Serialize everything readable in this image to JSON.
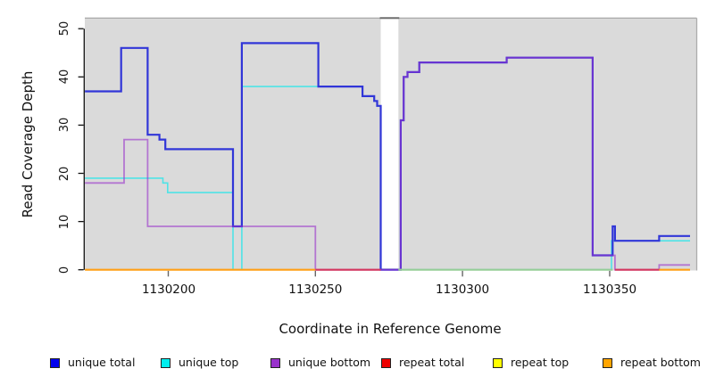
{
  "axes": {
    "x": {
      "label": "Coordinate in Reference Genome",
      "ticks": [
        "1130200",
        "1130250",
        "1130300",
        "1130350"
      ],
      "tick_values": [
        1130200,
        1130250,
        1130300,
        1130350
      ]
    },
    "y": {
      "label": "Read Coverage Depth",
      "ticks": [
        "0",
        "10",
        "20",
        "30",
        "40",
        "50"
      ],
      "tick_values": [
        0,
        10,
        20,
        30,
        40,
        50
      ]
    }
  },
  "legend": [
    {
      "label": "unique total",
      "color": "#0000EE"
    },
    {
      "label": "unique top",
      "color": "#00EEEE"
    },
    {
      "label": "unique bottom",
      "color": "#9932CC"
    },
    {
      "label": "repeat total",
      "color": "#EE0000"
    },
    {
      "label": "repeat top",
      "color": "#FFFF00"
    },
    {
      "label": "repeat bottom",
      "color": "#FFA500"
    }
  ],
  "chart_data": {
    "type": "line",
    "subtype": "step-coverage",
    "title": "",
    "xlabel": "Coordinate in Reference Genome",
    "ylabel": "Read Coverage Depth",
    "x_range": [
      1130171.7,
      1130379.6
    ],
    "y_range": [
      0,
      52
    ],
    "x_data_end": 1130377.3,
    "grid": false,
    "panel_background": "#DADADA",
    "legend_position": "bottom",
    "gap": {
      "x1": 1130272.2,
      "x2": 1130278.2,
      "fill": "#FFFFFF"
    },
    "series": [
      {
        "name": "unique top",
        "color": "#4FE3E6",
        "width": 1.6,
        "opacity": 1,
        "points": [
          [
            1130171.7,
            19
          ],
          [
            1130198.2,
            18
          ],
          [
            1130199.8,
            16
          ],
          [
            1130222,
            0
          ],
          [
            1130225,
            38
          ],
          [
            1130266,
            36
          ],
          [
            1130270,
            35
          ],
          [
            1130271,
            34
          ],
          [
            1130272.2,
            0
          ],
          [
            1130350.6,
            6
          ]
        ]
      },
      {
        "name": "unique total",
        "color": "#3136D8",
        "width": 2.2,
        "opacity": 1,
        "points": [
          [
            1130171.7,
            37
          ],
          [
            1130184,
            46
          ],
          [
            1130193,
            28
          ],
          [
            1130197,
            27
          ],
          [
            1130199,
            25
          ],
          [
            1130222,
            9
          ],
          [
            1130225,
            47
          ],
          [
            1130251,
            38
          ],
          [
            1130266,
            36
          ],
          [
            1130270,
            35
          ],
          [
            1130271,
            34
          ],
          [
            1130272.2,
            0
          ],
          [
            1130279,
            31
          ],
          [
            1130280,
            40
          ],
          [
            1130281.3,
            41
          ],
          [
            1130285.3,
            43
          ],
          [
            1130315,
            44
          ],
          [
            1130344.2,
            3
          ],
          [
            1130351,
            9
          ],
          [
            1130351.8,
            6
          ],
          [
            1130366.8,
            7
          ]
        ]
      },
      {
        "name": "unique bottom",
        "color": "#9932CC",
        "width": 1.8,
        "opacity": 0.6,
        "points": [
          [
            1130171.7,
            18
          ],
          [
            1130185,
            27
          ],
          [
            1130193,
            9
          ],
          [
            1130250,
            0
          ],
          [
            1130279,
            31
          ],
          [
            1130280,
            40
          ],
          [
            1130281.3,
            41
          ],
          [
            1130285.3,
            43
          ],
          [
            1130315,
            44
          ],
          [
            1130344.2,
            3
          ],
          [
            1130351.8,
            0
          ],
          [
            1130366.8,
            1
          ]
        ]
      }
    ],
    "baseline_segments": [
      {
        "name": "repeat bottom",
        "x1": 1130171.7,
        "x2": 1130250,
        "y": 0,
        "color": "#FF9F15"
      },
      {
        "name": "repeat total",
        "x1": 1130250,
        "x2": 1130272.2,
        "y": 0,
        "color": "#D4385E"
      },
      {
        "name": "zero-line-after-gap",
        "x1": 1130278.2,
        "x2": 1130351,
        "y": 0,
        "color": "#95CD97"
      },
      {
        "name": "repeat total",
        "x1": 1130351.8,
        "x2": 1130366.8,
        "y": 0,
        "color": "#D4385E"
      },
      {
        "name": "repeat bottom",
        "x1": 1130366.8,
        "x2": 1130377.3,
        "y": 0,
        "color": "#FF9F15"
      }
    ]
  }
}
